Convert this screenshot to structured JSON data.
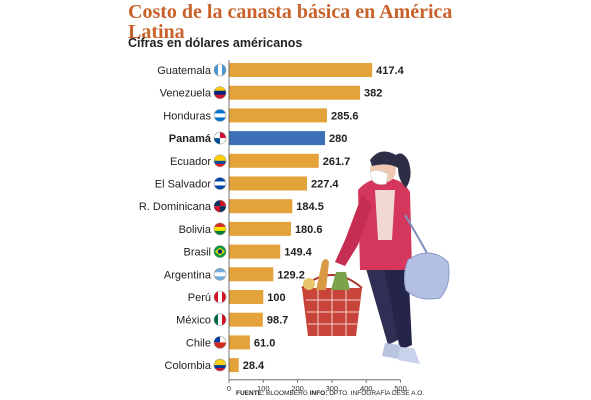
{
  "title": "Costo de la canasta básica en América Latina",
  "subtitle": "Cifras en dólares américanos",
  "source": {
    "label1": "FUENTE:",
    "text1": "BLOOMBERG",
    "label2": "INFO:",
    "text2": "DPTO. INFOGRAFÍA DESE A.O."
  },
  "colors": {
    "bar": "#e3a23a",
    "highlight": "#3d6fb6",
    "title": "#c8612a"
  },
  "chart_data": {
    "type": "bar",
    "orientation": "horizontal",
    "categories": [
      "Guatemala",
      "Venezuela",
      "Honduras",
      "Panamá",
      "Ecuador",
      "El Salvador",
      "R. Dominicana",
      "Bolivia",
      "Brasil",
      "Argentina",
      "Perú",
      "México",
      "Chile",
      "Colombia"
    ],
    "values": [
      417.4,
      382,
      285.6,
      280,
      261.7,
      227.4,
      184.5,
      180.6,
      149.4,
      129.2,
      100,
      98.7,
      61.0,
      28.4
    ],
    "value_labels": [
      "417.4",
      "382",
      "285.6",
      "280",
      "261.7",
      "227.4",
      "184.5",
      "180.6",
      "149.4",
      "129.2",
      "100",
      "98.7",
      "61.0",
      "28.4"
    ],
    "highlight": "Panamá",
    "flags": [
      "flag-guatemala",
      "flag-venezuela",
      "flag-honduras",
      "flag-panama",
      "flag-ecuador",
      "flag-el-salvador",
      "flag-dominican-republic",
      "flag-bolivia",
      "flag-brazil",
      "flag-argentina",
      "flag-peru",
      "flag-mexico",
      "flag-chile",
      "flag-colombia"
    ],
    "xlim": [
      0,
      500
    ],
    "xticks": [
      0,
      100,
      200,
      300,
      400,
      500
    ],
    "xtick_labels": [
      "0",
      "100",
      "200",
      "300",
      "400",
      "500"
    ],
    "grid": false,
    "legend": "none"
  }
}
